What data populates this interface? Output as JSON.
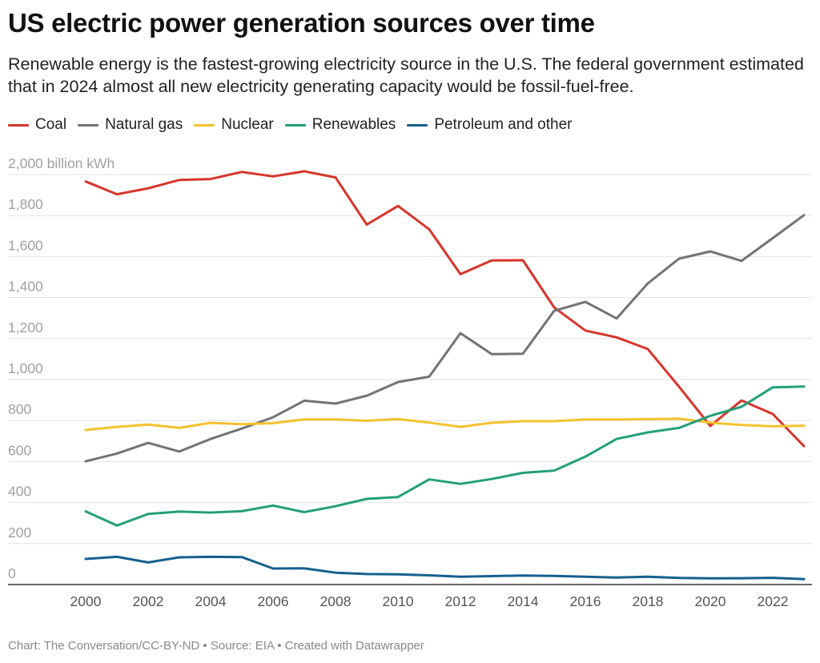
{
  "title": "US electric power generation sources over time",
  "subtitle": "Renewable energy is the fastest-growing electricity source in the U.S. The federal government estimated that in 2024 almost all new electricity generating capacity would be fossil-fuel-free.",
  "footer": "Chart: The Conversation/CC-BY-ND • Source: EIA • Created with Datawrapper",
  "chart_data": {
    "type": "line",
    "title": "US electric power generation sources over time",
    "ylabel": "",
    "yunit": "billion kWh",
    "ylim": [
      0,
      2000
    ],
    "yticks": [
      0,
      200,
      400,
      600,
      800,
      1000,
      1200,
      1400,
      1600,
      1800,
      2000
    ],
    "ytick_labels": [
      "0",
      "200",
      "400",
      "600",
      "800",
      "1,000",
      "1,200",
      "1,400",
      "1,600",
      "1,800",
      "2,000 billion kWh"
    ],
    "xlim": [
      2000,
      2023
    ],
    "xticks": [
      2000,
      2002,
      2004,
      2006,
      2008,
      2010,
      2012,
      2014,
      2016,
      2018,
      2020,
      2022
    ],
    "xtick_labels": [
      "2000",
      "2002",
      "2004",
      "2006",
      "2008",
      "2010",
      "2012",
      "2014",
      "2016",
      "2018",
      "2020",
      "2022"
    ],
    "grid": "horizontal",
    "legend": "top-left",
    "x": [
      2000,
      2001,
      2002,
      2003,
      2004,
      2005,
      2006,
      2007,
      2008,
      2009,
      2010,
      2011,
      2012,
      2013,
      2014,
      2015,
      2016,
      2017,
      2018,
      2019,
      2020,
      2021,
      2022,
      2023
    ],
    "series": [
      {
        "name": "Coal",
        "color": "#d7352b",
        "values": [
          1966,
          1904,
          1933,
          1974,
          1978,
          2013,
          1991,
          2016,
          1986,
          1756,
          1847,
          1733,
          1514,
          1581,
          1582,
          1352,
          1239,
          1206,
          1149,
          965,
          774,
          898,
          832,
          675
        ]
      },
      {
        "name": "Natural gas",
        "color": "#737373",
        "values": [
          601,
          639,
          691,
          649,
          710,
          761,
          816,
          897,
          883,
          921,
          988,
          1014,
          1226,
          1124,
          1126,
          1335,
          1379,
          1298,
          1469,
          1590,
          1625,
          1579,
          1690,
          1802
        ]
      },
      {
        "name": "Nuclear",
        "color": "#f5c12e",
        "values": [
          754,
          769,
          780,
          764,
          789,
          782,
          787,
          806,
          806,
          799,
          807,
          790,
          769,
          789,
          797,
          797,
          805,
          805,
          807,
          809,
          790,
          778,
          772,
          775
        ]
      },
      {
        "name": "Renewables",
        "color": "#23a079",
        "values": [
          357,
          288,
          344,
          356,
          351,
          358,
          385,
          353,
          382,
          418,
          427,
          513,
          491,
          515,
          545,
          556,
          624,
          710,
          742,
          764,
          823,
          867,
          962,
          966
        ]
      },
      {
        "name": "Petroleum and other",
        "color": "#15608f",
        "values": [
          125,
          135,
          108,
          133,
          135,
          134,
          78,
          79,
          58,
          51,
          50,
          45,
          38,
          41,
          44,
          42,
          38,
          34,
          38,
          32,
          30,
          31,
          33,
          26
        ]
      }
    ]
  }
}
